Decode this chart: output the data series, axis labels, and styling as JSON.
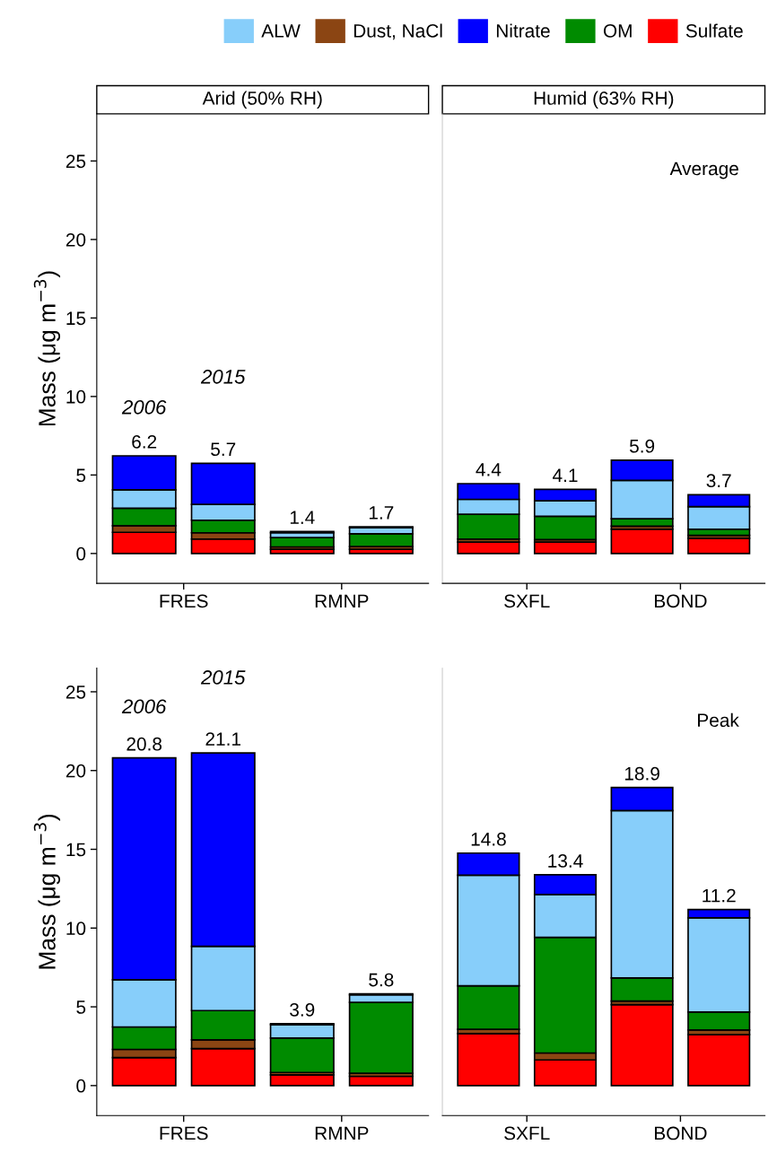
{
  "chart_data": [
    {
      "type": "bar",
      "stacked": true,
      "title": "Arid (50% RH)",
      "ylabel": "Mass (μg m$^{−3}$)",
      "categories": [
        "FRES",
        null,
        "RMNP",
        null
      ],
      "ylim": [
        -1.9,
        28
      ],
      "yticks": [
        0,
        5,
        10,
        15,
        20,
        25
      ],
      "legend": "top",
      "grid": false,
      "series": [
        {
          "name": "Sulfate",
          "color": "#ff0000",
          "values": [
            1.35,
            0.92,
            0.27,
            0.27
          ]
        },
        {
          "name": "Dust, NaCl",
          "color": "#8b4513",
          "values": [
            0.42,
            0.4,
            0.15,
            0.17
          ]
        },
        {
          "name": "OM",
          "color": "#008b00",
          "values": [
            1.11,
            0.8,
            0.6,
            0.82
          ]
        },
        {
          "name": "ALW",
          "color": "#87cefa",
          "values": [
            1.18,
            1.01,
            0.3,
            0.38
          ]
        },
        {
          "name": "Nitrate",
          "color": "#0000ff",
          "values": [
            2.16,
            2.61,
            0.08,
            0.06
          ]
        }
      ],
      "totals": [
        "6.2",
        "5.7",
        "1.4",
        "1.7"
      ],
      "annotations": [
        "2006",
        "2015"
      ]
    },
    {
      "type": "bar",
      "stacked": true,
      "title": "Humid (63% RH)",
      "categories": [
        "SXFL",
        null,
        "BOND",
        null
      ],
      "ylim": [
        -1.9,
        28
      ],
      "tick_labels": "x",
      "grid": false,
      "series": [
        {
          "color": "#ff0000",
          "values": [
            0.73,
            0.73,
            1.55,
            0.97
          ]
        },
        {
          "color": "#8b4513",
          "values": [
            0.19,
            0.15,
            0.19,
            0.19
          ]
        },
        {
          "color": "#008b00",
          "values": [
            1.58,
            1.49,
            0.47,
            0.39
          ]
        },
        {
          "color": "#87cefa",
          "values": [
            0.95,
            0.99,
            2.45,
            1.43
          ]
        },
        {
          "color": "#0000ff",
          "values": [
            1.0,
            0.72,
            1.28,
            0.76
          ]
        }
      ],
      "totals": [
        "4.4",
        "4.1",
        "5.9",
        "3.7"
      ],
      "annotations": [
        "Average"
      ]
    },
    {
      "type": "bar",
      "stacked": true,
      "ylabel": "Mass (μg m$^{−3}$)",
      "categories": [
        "FRES",
        null,
        "RMNP",
        null
      ],
      "ylim": [
        -1.9,
        26.5
      ],
      "yticks": [
        0,
        5,
        10,
        15,
        20,
        25
      ],
      "grid": false,
      "series": [
        {
          "color": "#ff0000",
          "values": [
            1.78,
            2.35,
            0.68,
            0.59
          ]
        },
        {
          "color": "#8b4513",
          "values": [
            0.52,
            0.55,
            0.15,
            0.19
          ]
        },
        {
          "color": "#008b00",
          "values": [
            1.42,
            1.86,
            2.19,
            4.5
          ]
        },
        {
          "color": "#87cefa",
          "values": [
            3.0,
            4.08,
            0.85,
            0.49
          ]
        },
        {
          "color": "#0000ff",
          "values": [
            14.08,
            12.28,
            0.06,
            0.06
          ]
        }
      ],
      "totals": [
        "20.8",
        "21.1",
        "3.9",
        "5.8"
      ],
      "annotations": [
        "2006",
        "2015"
      ]
    },
    {
      "type": "bar",
      "stacked": true,
      "categories": [
        "SXFL",
        null,
        "BOND",
        null
      ],
      "ylim": [
        -1.9,
        26.5
      ],
      "tick_labels": "x",
      "grid": false,
      "series": [
        {
          "color": "#ff0000",
          "values": [
            3.3,
            1.63,
            5.14,
            3.24
          ]
        },
        {
          "color": "#8b4513",
          "values": [
            0.27,
            0.44,
            0.23,
            0.29
          ]
        },
        {
          "color": "#008b00",
          "values": [
            2.77,
            7.34,
            1.46,
            1.14
          ]
        },
        {
          "color": "#87cefa",
          "values": [
            7.02,
            2.72,
            10.63,
            5.98
          ]
        },
        {
          "color": "#0000ff",
          "values": [
            1.4,
            1.25,
            1.46,
            0.53
          ]
        }
      ],
      "totals": [
        "14.8",
        "13.4",
        "18.9",
        "11.2"
      ],
      "annotations": [
        "Peak"
      ]
    }
  ]
}
